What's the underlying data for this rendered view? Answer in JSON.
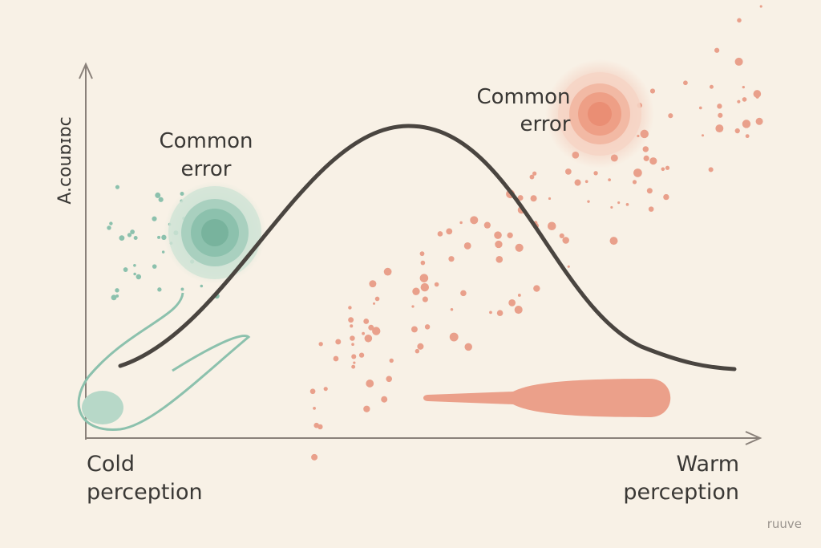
{
  "y_axis_label": "A.couɒɪɒc",
  "annotations": [
    {
      "lines": [
        "Common",
        "error"
      ]
    },
    {
      "lines": [
        "Common",
        "error"
      ]
    }
  ],
  "x_axis_labels": {
    "left": [
      "Cold",
      "perception"
    ],
    "right": [
      "Warm",
      "perception"
    ]
  },
  "watermark": "ruuve"
}
